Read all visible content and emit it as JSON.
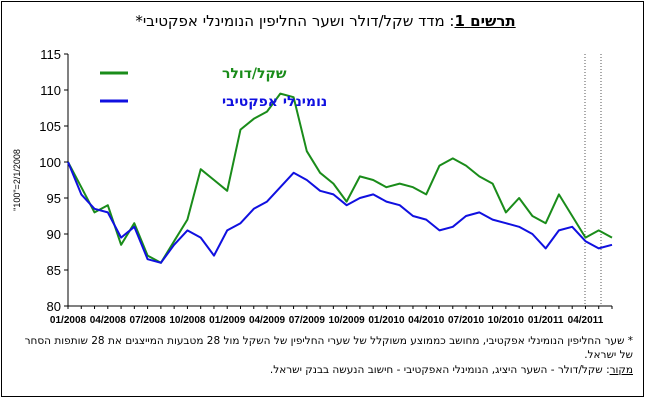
{
  "title": {
    "label": "תרשים 1",
    "text": ": מדד שקל/דולר ושער החליפין הנומינלי אפקטיבי*"
  },
  "footnotes": {
    "note_1": "* שער החליפין הנומינלי אפקטיבי, מחושב כממוצע משוקלל של שערי החליפין של השקל מול 28 מטבעות המייצגים את 28 שותפות הסחר של ישראל.",
    "source_label": "מקור",
    "source_text": ": שקל/דולר - השער היציג, הנומינלי האפקטיבי - חישוב הנעשה בבנק ישראל."
  },
  "chart_data": {
    "type": "line",
    "ylabel": "\"100\"=2/1/2008",
    "ylim": [
      80,
      115
    ],
    "yticks": [
      80,
      85,
      90,
      95,
      100,
      105,
      110,
      115
    ],
    "x_range": [
      "2008-01",
      "2011-06"
    ],
    "xtick_labels": [
      "01/2008",
      "04/2008",
      "07/2008",
      "10/2008",
      "01/2009",
      "04/2009",
      "07/2009",
      "10/2009",
      "01/2010",
      "04/2010",
      "07/2010",
      "10/2010",
      "01/2011",
      "04/2011"
    ],
    "grid": false,
    "legend_position": "top-left",
    "series": [
      {
        "name": "שקל/דולר",
        "color": "#1a8c1a",
        "points": [
          [
            "2008-01",
            100.0
          ],
          [
            "2008-02",
            96.5
          ],
          [
            "2008-03",
            93.0
          ],
          [
            "2008-04",
            94.0
          ],
          [
            "2008-05",
            88.5
          ],
          [
            "2008-06",
            91.5
          ],
          [
            "2008-07",
            87.0
          ],
          [
            "2008-08",
            86.0
          ],
          [
            "2008-09",
            89.0
          ],
          [
            "2008-10",
            92.0
          ],
          [
            "2008-11",
            99.0
          ],
          [
            "2008-12",
            97.5
          ],
          [
            "2009-01",
            96.0
          ],
          [
            "2009-02",
            104.5
          ],
          [
            "2009-03",
            106.0
          ],
          [
            "2009-04",
            107.0
          ],
          [
            "2009-05",
            109.5
          ],
          [
            "2009-06",
            109.0
          ],
          [
            "2009-07",
            101.5
          ],
          [
            "2009-08",
            98.5
          ],
          [
            "2009-09",
            97.0
          ],
          [
            "2009-10",
            94.5
          ],
          [
            "2009-11",
            98.0
          ],
          [
            "2009-12",
            97.5
          ],
          [
            "2010-01",
            96.5
          ],
          [
            "2010-02",
            97.0
          ],
          [
            "2010-03",
            96.5
          ],
          [
            "2010-04",
            95.5
          ],
          [
            "2010-05",
            99.5
          ],
          [
            "2010-06",
            100.5
          ],
          [
            "2010-07",
            99.5
          ],
          [
            "2010-08",
            98.0
          ],
          [
            "2010-09",
            97.0
          ],
          [
            "2010-10",
            93.0
          ],
          [
            "2010-11",
            95.0
          ],
          [
            "2010-12",
            92.5
          ],
          [
            "2011-01",
            91.5
          ],
          [
            "2011-02",
            95.5
          ],
          [
            "2011-03",
            92.5
          ],
          [
            "2011-04",
            89.5
          ],
          [
            "2011-05",
            90.5
          ],
          [
            "2011-06",
            89.5
          ]
        ]
      },
      {
        "name": "נומינלי אפקטיבי",
        "color": "#1010e0",
        "points": [
          [
            "2008-01",
            100.0
          ],
          [
            "2008-02",
            95.5
          ],
          [
            "2008-03",
            93.5
          ],
          [
            "2008-04",
            93.0
          ],
          [
            "2008-05",
            89.5
          ],
          [
            "2008-06",
            91.0
          ],
          [
            "2008-07",
            86.5
          ],
          [
            "2008-08",
            86.0
          ],
          [
            "2008-09",
            88.5
          ],
          [
            "2008-10",
            90.5
          ],
          [
            "2008-11",
            89.5
          ],
          [
            "2008-12",
            87.0
          ],
          [
            "2009-01",
            90.5
          ],
          [
            "2009-02",
            91.5
          ],
          [
            "2009-03",
            93.5
          ],
          [
            "2009-04",
            94.5
          ],
          [
            "2009-05",
            96.5
          ],
          [
            "2009-06",
            98.5
          ],
          [
            "2009-07",
            97.5
          ],
          [
            "2009-08",
            96.0
          ],
          [
            "2009-09",
            95.5
          ],
          [
            "2009-10",
            94.0
          ],
          [
            "2009-11",
            95.0
          ],
          [
            "2009-12",
            95.5
          ],
          [
            "2010-01",
            94.5
          ],
          [
            "2010-02",
            94.0
          ],
          [
            "2010-03",
            92.5
          ],
          [
            "2010-04",
            92.0
          ],
          [
            "2010-05",
            90.5
          ],
          [
            "2010-06",
            91.0
          ],
          [
            "2010-07",
            92.5
          ],
          [
            "2010-08",
            93.0
          ],
          [
            "2010-09",
            92.0
          ],
          [
            "2010-10",
            91.5
          ],
          [
            "2010-11",
            91.0
          ],
          [
            "2010-12",
            90.0
          ],
          [
            "2011-01",
            88.0
          ],
          [
            "2011-02",
            90.5
          ],
          [
            "2011-03",
            91.0
          ],
          [
            "2011-04",
            89.0
          ],
          [
            "2011-05",
            88.0
          ],
          [
            "2011-06",
            88.5
          ]
        ]
      }
    ]
  }
}
